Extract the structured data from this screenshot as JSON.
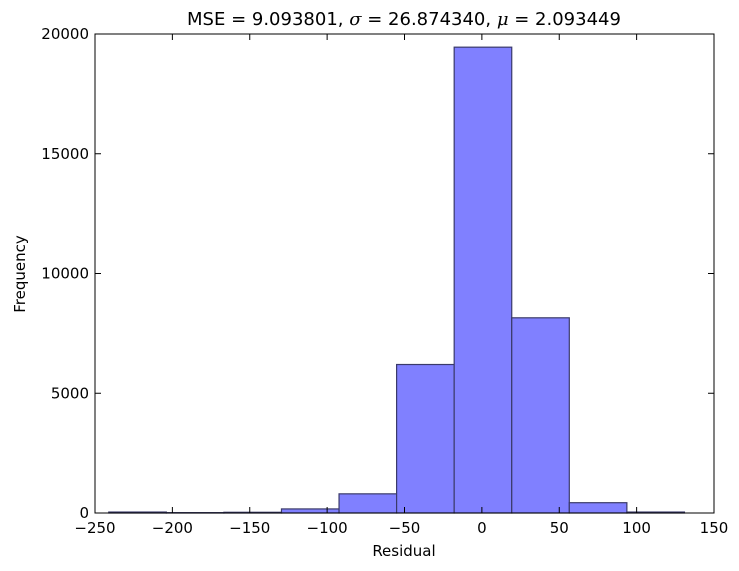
{
  "chart_data": {
    "type": "bar",
    "subtype": "histogram",
    "title": {
      "prefix": "MSE = 9.093801, ",
      "sigma_symbol": "σ",
      "sigma_text": " = 26.874340, ",
      "mu_symbol": "μ",
      "mu_text": " = 2.093449"
    },
    "xlabel": "Residual",
    "ylabel": "Frequency",
    "xlim": [
      -250,
      150
    ],
    "ylim": [
      0,
      20000
    ],
    "xticks": [
      -250,
      -200,
      -150,
      -100,
      -50,
      0,
      50,
      100,
      150
    ],
    "xtick_labels": [
      "−250",
      "−200",
      "−150",
      "−100",
      "−50",
      "0",
      "50",
      "100",
      "150"
    ],
    "yticks": [
      0,
      5000,
      10000,
      15000,
      20000
    ],
    "ytick_labels": [
      "0",
      "5000",
      "10000",
      "15000",
      "20000"
    ],
    "grid": false,
    "bar_color": "#8080ff",
    "edge_color": "#3a3a6a",
    "bins": [
      {
        "x0": -241.1,
        "x1": -203.9,
        "count": 40
      },
      {
        "x0": -203.9,
        "x1": -166.7,
        "count": 15
      },
      {
        "x0": -166.7,
        "x1": -129.5,
        "count": 30
      },
      {
        "x0": -129.5,
        "x1": -92.3,
        "count": 170
      },
      {
        "x0": -92.3,
        "x1": -55.1,
        "count": 800
      },
      {
        "x0": -55.1,
        "x1": -17.9,
        "count": 6200
      },
      {
        "x0": -17.9,
        "x1": 19.3,
        "count": 19450
      },
      {
        "x0": 19.3,
        "x1": 56.5,
        "count": 8150
      },
      {
        "x0": 56.5,
        "x1": 93.7,
        "count": 430
      },
      {
        "x0": 93.7,
        "x1": 130.9,
        "count": 40
      }
    ]
  }
}
